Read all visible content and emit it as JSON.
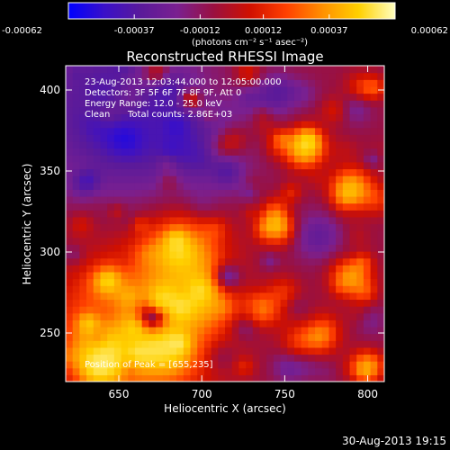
{
  "chart_data": {
    "type": "heatmap",
    "title": "Reconstructed RHESSI Image",
    "xlabel": "Heliocentric X (arcsec)",
    "ylabel": "Heliocentric Y (arcsec)",
    "xlim": [
      618,
      810
    ],
    "ylim": [
      220,
      415
    ],
    "x_ticks": [
      650,
      700,
      750,
      800
    ],
    "y_ticks": [
      250,
      300,
      350,
      400
    ],
    "colorbar": {
      "range": [
        -0.00062,
        0.00062
      ],
      "tick_values": [
        -0.00062,
        -0.00037,
        -0.00012,
        0.00012,
        0.00037,
        0.00062
      ],
      "tick_labels": [
        "-0.00062",
        "-0.00037",
        "-0.00012",
        "0.00012",
        "0.00037",
        "0.00062"
      ],
      "unit_label": "(photons cm⁻² s⁻¹ asec⁻²)",
      "colormap": [
        "#0000ff",
        "#3a10c8",
        "#5a1a9a",
        "#7a2090",
        "#9a1040",
        "#d01000",
        "#ff4000",
        "#ff9000",
        "#ffd000",
        "#ffffc0"
      ]
    },
    "annotations": {
      "time_range": "23-Aug-2013 12:03:44.000 to 12:05:00.000",
      "detectors": "Detectors: 3F 5F 6F 7F 8F 9F, Att 0",
      "energy_range": "Energy Range: 12.0 - 25.0 keV",
      "algorithm": "Clean",
      "total_counts": "Total counts: 2.86E+03",
      "peak": "Position of Peak = [655,235]"
    },
    "peak_position": [
      655,
      235
    ],
    "image_summary": [
      {
        "region": "upper-left",
        "x": [
          618,
          700
        ],
        "y": [
          340,
          415
        ],
        "level": "negative (blue/purple)"
      },
      {
        "region": "lower-left",
        "x": [
          618,
          735
        ],
        "y": [
          220,
          330
        ],
        "level": "positive (red/orange/yellow)"
      },
      {
        "region": "right",
        "x": [
          740,
          810
        ],
        "y": [
          220,
          415
        ],
        "level": "mixed red and purple"
      }
    ]
  },
  "footer": {
    "timestamp": "30-Aug-2013 19:15"
  }
}
